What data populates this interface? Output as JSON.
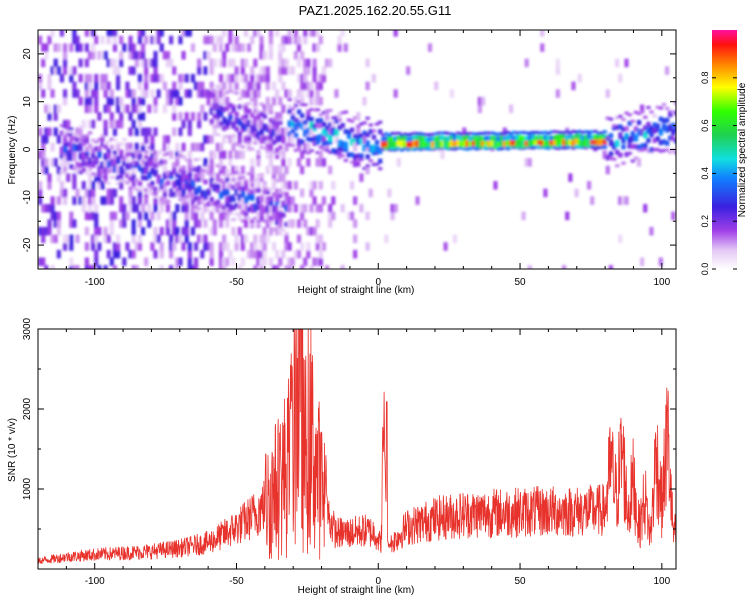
{
  "title": "PAZ1.2025.162.20.55.G11",
  "chart_data": [
    {
      "type": "heatmap",
      "xlabel": "Height of straight line (km)",
      "ylabel": "Frequency (Hz)",
      "xlim": [
        -120,
        105
      ],
      "ylim": [
        -25,
        25
      ],
      "xticks": [
        -100,
        -50,
        0,
        50,
        100
      ],
      "yticks": [
        -20,
        -10,
        0,
        10,
        20
      ],
      "colorbar": {
        "label": "Normalized spectral amplitude",
        "range": [
          0,
          1
        ],
        "ticks": [
          0.0,
          0.2,
          0.4,
          0.6,
          0.8
        ],
        "tick_labels": [
          "0.0",
          "0.2",
          "0.4",
          "0.6",
          "0.8"
        ],
        "colormap": "rainbow (white-violet-blue-cyan-green-yellow-orange-red-magenta)"
      },
      "features": [
        {
          "description": "noisy band",
          "x": [
            -113,
            -33
          ],
          "freq": [
            0,
            -13
          ],
          "amplitude": [
            0.15,
            0.35
          ]
        },
        {
          "description": "weak band",
          "x": [
            -60,
            -35
          ],
          "freq": [
            8,
            2
          ],
          "amplitude": [
            0.2,
            0.3
          ]
        },
        {
          "description": "dip",
          "x": [
            -33,
            0
          ],
          "freq": [
            5,
            0
          ],
          "amplitude": [
            0.3,
            0.5
          ]
        },
        {
          "description": "strong flat band",
          "x": [
            0,
            80
          ],
          "freq": [
            1,
            1.5
          ],
          "amplitude": [
            0.5,
            0.95
          ]
        },
        {
          "description": "scattered band",
          "x": [
            80,
            105
          ],
          "freq": [
            1,
            4
          ],
          "amplitude": [
            0.2,
            0.5
          ]
        }
      ]
    },
    {
      "type": "line",
      "xlabel": "Height of straight line (km)",
      "ylabel": "SNR (10 * v/v)",
      "xlim": [
        -120,
        105
      ],
      "ylim": [
        0,
        3000
      ],
      "xticks": [
        -100,
        -50,
        0,
        50,
        100
      ],
      "yticks": [
        1000,
        2000,
        3000
      ],
      "series": [
        {
          "color": "#e8322c",
          "x": [
            -120,
            -110,
            -100,
            -90,
            -80,
            -70,
            -60,
            -55,
            -50,
            -45,
            -40,
            -36,
            -32,
            -30,
            -28,
            -26,
            -24,
            -22,
            -20,
            -18,
            -15,
            -10,
            -5,
            -1,
            1,
            2,
            3,
            4,
            5,
            10,
            20,
            30,
            40,
            50,
            60,
            70,
            80,
            82,
            84,
            86,
            88,
            90,
            92,
            94,
            96,
            98,
            100,
            102,
            104
          ],
          "y": [
            100,
            150,
            180,
            200,
            220,
            260,
            330,
            420,
            520,
            640,
            800,
            1000,
            1250,
            1600,
            2600,
            1400,
            1700,
            1300,
            1000,
            700,
            450,
            450,
            480,
            450,
            300,
            2050,
            350,
            300,
            330,
            520,
            630,
            680,
            700,
            710,
            720,
            720,
            740,
            1300,
            900,
            1500,
            700,
            1100,
            500,
            900,
            400,
            1450,
            800,
            1700,
            450
          ],
          "peaks": [
            {
              "x": -29,
              "y": 3050
            },
            {
              "x": 3,
              "y": 2090
            }
          ]
        }
      ]
    }
  ],
  "colors": {
    "line": "#e8322c",
    "axis": "#000000"
  }
}
